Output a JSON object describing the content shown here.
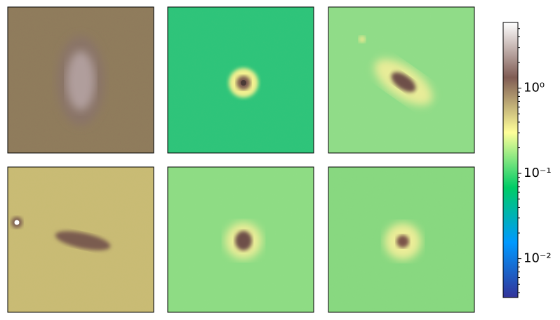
{
  "chart_data": {
    "type": "image-grid",
    "colorbar": {
      "scale": "log",
      "ylim": [
        0.0035,
        5.9
      ],
      "yticks": [
        {
          "value": 0.01,
          "label": "10⁻²"
        },
        {
          "value": 0.1,
          "label": "10⁻¹"
        },
        {
          "value": 1,
          "label": "10⁰"
        }
      ],
      "colormap": [
        "#333399",
        "#0099ff",
        "#00cc66",
        "#ffff99",
        "#805c54",
        "#ffffff"
      ]
    }
  }
}
